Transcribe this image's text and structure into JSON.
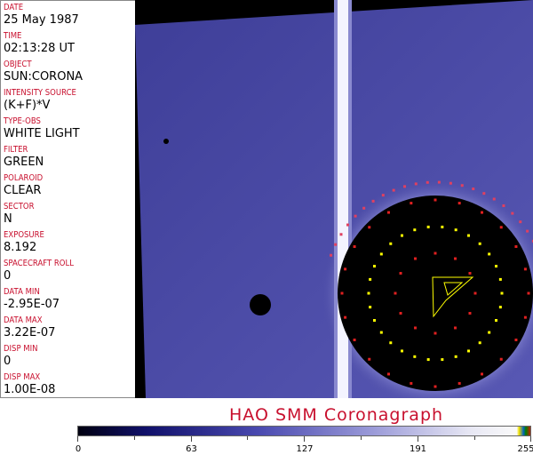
{
  "fields": [
    {
      "label": "DATE",
      "value": "25 May 1987"
    },
    {
      "label": "TIME",
      "value": "02:13:28 UT"
    },
    {
      "label": "OBJECT",
      "value": "SUN:CORONA"
    },
    {
      "label": "INTENSITY SOURCE",
      "value": "(K+F)*V"
    },
    {
      "label": "TYPE-OBS",
      "value": "WHITE LIGHT"
    },
    {
      "label": "FILTER",
      "value": "GREEN"
    },
    {
      "label": "POLAROID",
      "value": "CLEAR"
    },
    {
      "label": "SECTOR",
      "value": "N"
    },
    {
      "label": "EXPOSURE",
      "value": "8.192"
    },
    {
      "label": "SPACECRAFT ROLL",
      "value": "0"
    },
    {
      "label": "DATA MIN",
      "value": "-2.95E-07"
    },
    {
      "label": "DATA MAX",
      "value": "3.22E-07"
    },
    {
      "label": "DISP MIN",
      "value": "0"
    },
    {
      "label": "DISP MAX",
      "value": "1.00E-08"
    }
  ],
  "title": "HAO  SMM Coronagraph",
  "colorbar": {
    "ticks": [
      "0",
      "63",
      "127",
      "191",
      "255"
    ],
    "min": 0,
    "max": 255
  },
  "colors": {
    "label": "#c8102e",
    "background": "#4a4aa8"
  }
}
